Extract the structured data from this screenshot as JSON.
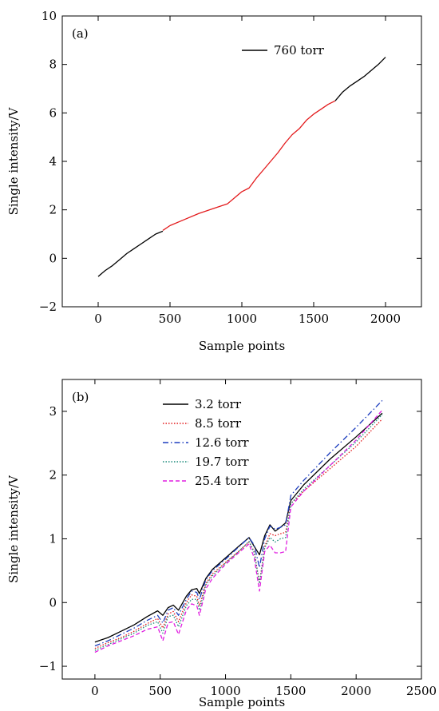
{
  "chart_data": [
    {
      "type": "line",
      "panel_label": "(a)",
      "xlabel": "Sample points",
      "ylabel": "Single intensity/V",
      "xlim": [
        -250,
        2250
      ],
      "ylim": [
        -2,
        10
      ],
      "x_ticks": [
        0,
        500,
        1000,
        1500,
        2000
      ],
      "y_ticks": [
        -2,
        0,
        2,
        4,
        6,
        8,
        10
      ],
      "y_tick_labels": [
        "−2",
        "0",
        "2",
        "4",
        "6",
        "8",
        "10"
      ],
      "legend_position": "top-right",
      "series": [
        {
          "name": "760 torr",
          "color": "#000000",
          "dash": "solid",
          "x": [
            0,
            50,
            100,
            150,
            200,
            250,
            300,
            350,
            400,
            450
          ],
          "y": [
            -0.75,
            -0.5,
            -0.3,
            -0.05,
            0.2,
            0.4,
            0.6,
            0.8,
            1.0,
            1.12
          ]
        },
        {
          "name": "",
          "color": "#e31a1c",
          "dash": "solid",
          "x": [
            450,
            500,
            600,
            700,
            800,
            900,
            950,
            1000,
            1050,
            1100,
            1150,
            1200,
            1250,
            1300,
            1350,
            1400,
            1450,
            1500,
            1550,
            1600,
            1650
          ],
          "y": [
            1.15,
            1.35,
            1.6,
            1.85,
            2.05,
            2.25,
            2.5,
            2.75,
            2.9,
            3.3,
            3.65,
            4.0,
            4.35,
            4.75,
            5.1,
            5.35,
            5.7,
            5.95,
            6.15,
            6.35,
            6.5
          ]
        },
        {
          "name": "",
          "color": "#000000",
          "dash": "solid",
          "x": [
            1650,
            1700,
            1750,
            1800,
            1850,
            1900,
            1950,
            2000
          ],
          "y": [
            6.5,
            6.85,
            7.1,
            7.3,
            7.5,
            7.75,
            8.0,
            8.3
          ]
        }
      ]
    },
    {
      "type": "line",
      "panel_label": "(b)",
      "xlabel": "Sample points",
      "ylabel": "Single intensity/V",
      "xlim": [
        -250,
        2500
      ],
      "ylim": [
        -1.2,
        3.5
      ],
      "x_ticks": [
        0,
        500,
        1000,
        1500,
        2000,
        2500
      ],
      "y_ticks": [
        -1,
        0,
        1,
        2,
        3
      ],
      "y_tick_labels": [
        "−1",
        "0",
        "1",
        "2",
        "3"
      ],
      "legend_position": "top-left",
      "series": [
        {
          "name": "3.2 torr",
          "color": "#000000",
          "dash": "solid",
          "x": [
            0,
            100,
            200,
            300,
            400,
            480,
            520,
            560,
            600,
            640,
            700,
            740,
            780,
            800,
            850,
            900,
            1000,
            1100,
            1180,
            1220,
            1260,
            1300,
            1340,
            1380,
            1420,
            1460,
            1500,
            1600,
            1800,
            2000,
            2200
          ],
          "y": [
            -0.62,
            -0.55,
            -0.45,
            -0.35,
            -0.22,
            -0.13,
            -0.2,
            -0.08,
            -0.04,
            -0.12,
            0.1,
            0.2,
            0.22,
            0.14,
            0.38,
            0.52,
            0.7,
            0.88,
            1.02,
            0.88,
            0.75,
            1.05,
            1.22,
            1.12,
            1.18,
            1.25,
            1.6,
            1.85,
            2.25,
            2.6,
            2.97
          ]
        },
        {
          "name": "8.5 torr",
          "color": "#e31a1c",
          "dash": "dotted",
          "x": [
            0,
            100,
            200,
            300,
            400,
            480,
            520,
            560,
            600,
            640,
            700,
            740,
            780,
            800,
            850,
            900,
            1000,
            1100,
            1180,
            1220,
            1260,
            1300,
            1340,
            1380,
            1420,
            1460,
            1500,
            1600,
            1800,
            2000,
            2200
          ],
          "y": [
            -0.72,
            -0.63,
            -0.55,
            -0.45,
            -0.33,
            -0.25,
            -0.4,
            -0.18,
            -0.14,
            -0.3,
            0.0,
            0.12,
            0.1,
            -0.05,
            0.3,
            0.45,
            0.63,
            0.8,
            0.95,
            0.8,
            0.3,
            0.88,
            1.08,
            1.05,
            1.08,
            1.1,
            1.55,
            1.75,
            2.1,
            2.45,
            2.88
          ]
        },
        {
          "name": "12.6 torr",
          "color": "#1f3fbf",
          "dash": "dashdot",
          "x": [
            0,
            100,
            200,
            300,
            400,
            480,
            520,
            560,
            600,
            640,
            700,
            740,
            780,
            800,
            850,
            900,
            1000,
            1100,
            1180,
            1220,
            1260,
            1300,
            1340,
            1380,
            1420,
            1460,
            1500,
            1600,
            1800,
            2000,
            2200
          ],
          "y": [
            -0.68,
            -0.6,
            -0.5,
            -0.4,
            -0.28,
            -0.2,
            -0.32,
            -0.12,
            -0.08,
            -0.2,
            0.05,
            0.18,
            0.16,
            0.05,
            0.36,
            0.5,
            0.68,
            0.87,
            1.02,
            0.9,
            0.55,
            1.0,
            1.2,
            1.15,
            1.18,
            1.22,
            1.68,
            1.92,
            2.35,
            2.75,
            3.17
          ]
        },
        {
          "name": "19.7 torr",
          "color": "#1a8a7a",
          "dash": "dotted",
          "x": [
            0,
            100,
            200,
            300,
            400,
            480,
            520,
            560,
            600,
            640,
            700,
            740,
            780,
            800,
            850,
            900,
            1000,
            1100,
            1180,
            1220,
            1260,
            1300,
            1340,
            1380,
            1420,
            1460,
            1500,
            1600,
            1800,
            2000,
            2200
          ],
          "y": [
            -0.75,
            -0.66,
            -0.57,
            -0.48,
            -0.36,
            -0.3,
            -0.48,
            -0.22,
            -0.2,
            -0.38,
            -0.05,
            0.05,
            0.05,
            -0.12,
            0.28,
            0.42,
            0.62,
            0.8,
            0.96,
            0.78,
            0.3,
            0.86,
            1.02,
            0.95,
            1.0,
            1.02,
            1.55,
            1.78,
            2.15,
            2.52,
            2.95
          ]
        },
        {
          "name": "25.4 torr",
          "color": "#e01ee0",
          "dash": "dashed",
          "x": [
            0,
            100,
            200,
            300,
            400,
            480,
            520,
            560,
            600,
            640,
            700,
            740,
            780,
            800,
            850,
            900,
            1000,
            1100,
            1180,
            1220,
            1260,
            1300,
            1340,
            1380,
            1420,
            1460,
            1500,
            1600,
            1800,
            2000,
            2200
          ],
          "y": [
            -0.78,
            -0.68,
            -0.6,
            -0.52,
            -0.42,
            -0.38,
            -0.6,
            -0.32,
            -0.3,
            -0.5,
            -0.12,
            -0.02,
            -0.05,
            -0.2,
            0.22,
            0.38,
            0.6,
            0.78,
            0.92,
            0.7,
            0.18,
            0.8,
            0.9,
            0.78,
            0.78,
            0.8,
            1.5,
            1.75,
            2.15,
            2.55,
            3.02
          ]
        }
      ]
    }
  ]
}
